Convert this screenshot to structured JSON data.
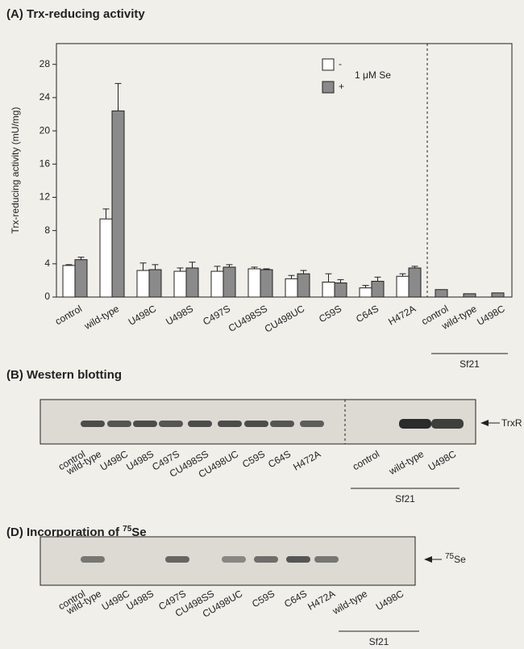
{
  "chart_data": {
    "type": "bar",
    "title": "(A) Trx-reducing activity",
    "y_label": "Trx-reducing activity (mU/mg)",
    "categories": [
      "control",
      "wild-type",
      "U498C",
      "U498S",
      "C497S",
      "CU498SS",
      "CU498UC",
      "C59S",
      "C64S",
      "H472A"
    ],
    "series": [
      {
        "name": "-",
        "color": "#ffffff",
        "values": [
          3.8,
          9.4,
          3.2,
          3.1,
          3.1,
          3.4,
          2.2,
          1.8,
          1.1,
          2.5
        ],
        "errors": [
          0.1,
          1.2,
          0.9,
          0.4,
          0.6,
          0.2,
          0.4,
          1.0,
          0.3,
          0.3
        ]
      },
      {
        "name": "+",
        "color": "#8a8a8a",
        "values": [
          4.5,
          22.4,
          3.3,
          3.5,
          3.6,
          3.3,
          2.8,
          1.7,
          1.9,
          3.5
        ],
        "errors": [
          0.3,
          3.3,
          0.6,
          0.7,
          0.3,
          0.1,
          0.4,
          0.4,
          0.5,
          0.2
        ]
      }
    ],
    "legend_title": "1 μM Se",
    "group_label": "Sf21",
    "group_categories": [
      "control",
      "wild-type",
      "U498C"
    ],
    "group_values": [
      0.9,
      0.4,
      0.5
    ],
    "group_color": "#8a8a8a",
    "ylim": [
      0,
      30.5
    ],
    "yticks": [
      0,
      4,
      8,
      12,
      16,
      20,
      24,
      28
    ]
  },
  "western": {
    "title": "(B) Western blotting",
    "lanes": [
      "control",
      "wild-type",
      "U498C",
      "U498S",
      "C497S",
      "CU498SS",
      "CU498UC",
      "C59S",
      "C64S",
      "H472A"
    ],
    "group_lanes": [
      "control",
      "wild-type",
      "U498C"
    ],
    "group_label": "Sf21",
    "marker": "TrxR"
  },
  "incorporation": {
    "title": "(D) Incorporation of ",
    "title_sup": "75",
    "title_end": "Se",
    "lanes": [
      "control",
      "wild-type",
      "U498C",
      "U498S",
      "C497S",
      "CU498SS",
      "CU498UC",
      "C59S",
      "C64S",
      "H472A"
    ],
    "group_lanes": [
      "wild-type",
      "U498C"
    ],
    "group_label": "Sf21",
    "marker_sup": "75",
    "marker": "Se"
  }
}
